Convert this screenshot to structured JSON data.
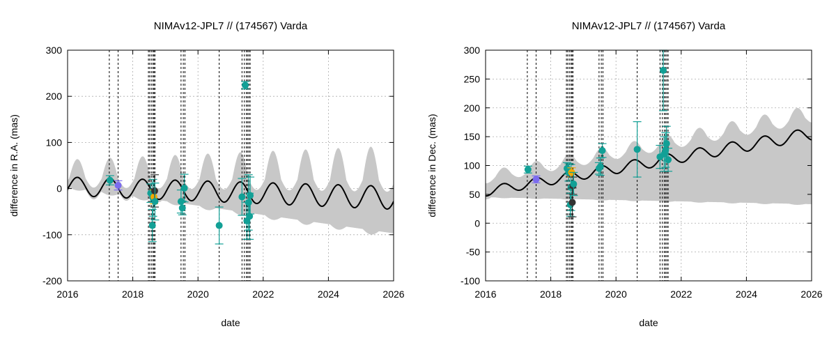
{
  "colors": {
    "band": "#c8c8c8",
    "model": "#000000",
    "teal": "#12a096",
    "purple": "#7b6bef",
    "orange": "#f2a900",
    "dark": "#333333",
    "vline": "#000000",
    "grid": "#aaaaaa"
  },
  "chart_data": [
    {
      "type": "scatter",
      "title": "NIMAv12-JPL7 // (174567) Varda",
      "xlabel": "date",
      "ylabel": "difference in R.A. (mas)",
      "xlim": [
        2016,
        2026
      ],
      "ylim": [
        -200,
        300
      ],
      "xticks": [
        2016,
        2018,
        2020,
        2022,
        2024,
        2026
      ],
      "yticks": [
        -200,
        -100,
        0,
        100,
        200,
        300
      ],
      "grid": true,
      "model": {
        "center": 5,
        "center_slope": -2.5,
        "amp": 20,
        "amp_slope": 0.5,
        "period": 1.0,
        "phase": 2016.05,
        "band_upper_base": 18,
        "band_upper_slope": 2,
        "band_lower_base": -2,
        "band_lower_slope": -10,
        "band_osc": 20,
        "band_osc_slope": 3
      },
      "vlines": [
        2017.28,
        2017.55,
        2018.48,
        2018.52,
        2018.57,
        2018.62,
        2018.65,
        2018.68,
        2019.48,
        2019.55,
        2019.6,
        2020.65,
        2021.35,
        2021.42,
        2021.48,
        2021.52,
        2021.56,
        2021.6
      ],
      "points": [
        {
          "x": 2017.3,
          "y": 18,
          "err": 10,
          "color": "teal"
        },
        {
          "x": 2017.55,
          "y": 7,
          "err": 10,
          "color": "purple"
        },
        {
          "x": 2018.55,
          "y": -10,
          "err": 20,
          "color": "teal"
        },
        {
          "x": 2018.6,
          "y": -80,
          "err": 35,
          "color": "teal"
        },
        {
          "x": 2018.62,
          "y": -20,
          "err": 40,
          "color": "teal"
        },
        {
          "x": 2018.65,
          "y": -18,
          "err": 15,
          "color": "orange"
        },
        {
          "x": 2018.67,
          "y": -5,
          "err": 35,
          "color": "dark"
        },
        {
          "x": 2018.68,
          "y": -28,
          "err": 40,
          "color": "teal"
        },
        {
          "x": 2019.48,
          "y": -28,
          "err": 25,
          "color": "teal"
        },
        {
          "x": 2019.52,
          "y": -42,
          "err": 15,
          "color": "teal"
        },
        {
          "x": 2019.58,
          "y": 1,
          "err": 30,
          "color": "teal"
        },
        {
          "x": 2020.65,
          "y": -80,
          "err": 40,
          "color": "teal"
        },
        {
          "x": 2021.35,
          "y": -18,
          "err": 40,
          "color": "teal"
        },
        {
          "x": 2021.45,
          "y": 224,
          "err": 8,
          "color": "teal"
        },
        {
          "x": 2021.5,
          "y": -70,
          "err": 40,
          "color": "teal"
        },
        {
          "x": 2021.55,
          "y": -30,
          "err": 60,
          "color": "teal"
        },
        {
          "x": 2021.58,
          "y": -60,
          "err": 50,
          "color": "teal"
        },
        {
          "x": 2021.6,
          "y": -15,
          "err": 40,
          "color": "teal"
        }
      ]
    },
    {
      "type": "scatter",
      "title": "NIMAv12-JPL7 // (174567) Varda",
      "xlabel": "date",
      "ylabel": "difference in Dec. (mas)",
      "xlim": [
        2016,
        2026
      ],
      "ylim": [
        -100,
        300
      ],
      "xticks": [
        2016,
        2018,
        2020,
        2022,
        2024,
        2026
      ],
      "yticks": [
        -100,
        -50,
        0,
        50,
        100,
        150,
        200,
        250,
        300
      ],
      "grid": true,
      "model": {
        "center": 55,
        "center_slope": 10,
        "amp": 8,
        "amp_slope": 0.3,
        "period": 1.0,
        "phase": 2016.3,
        "band_upper_base": 22,
        "band_upper_slope": 0.8,
        "band_lower_base": -10,
        "band_lower_slope": -1.2,
        "band_osc": 5,
        "band_osc_slope": 0.4
      },
      "vlines": [
        2017.28,
        2017.55,
        2018.48,
        2018.52,
        2018.57,
        2018.62,
        2018.65,
        2018.68,
        2019.48,
        2019.55,
        2019.6,
        2020.65,
        2021.35,
        2021.42,
        2021.48,
        2021.52,
        2021.56,
        2021.6
      ],
      "points": [
        {
          "x": 2017.3,
          "y": 93,
          "err": 6,
          "color": "teal"
        },
        {
          "x": 2017.55,
          "y": 76,
          "err": 6,
          "color": "purple"
        },
        {
          "x": 2018.5,
          "y": 95,
          "err": 10,
          "color": "teal"
        },
        {
          "x": 2018.55,
          "y": 88,
          "err": 15,
          "color": "teal"
        },
        {
          "x": 2018.6,
          "y": 32,
          "err": 20,
          "color": "teal"
        },
        {
          "x": 2018.62,
          "y": 62,
          "err": 40,
          "color": "teal"
        },
        {
          "x": 2018.64,
          "y": 88,
          "err": 8,
          "color": "orange"
        },
        {
          "x": 2018.66,
          "y": 36,
          "err": 25,
          "color": "dark"
        },
        {
          "x": 2018.68,
          "y": 65,
          "err": 15,
          "color": "dark"
        },
        {
          "x": 2018.7,
          "y": 68,
          "err": 20,
          "color": "teal"
        },
        {
          "x": 2019.48,
          "y": 95,
          "err": 10,
          "color": "teal"
        },
        {
          "x": 2019.52,
          "y": 98,
          "err": 15,
          "color": "teal"
        },
        {
          "x": 2019.58,
          "y": 126,
          "err": 12,
          "color": "teal"
        },
        {
          "x": 2020.65,
          "y": 128,
          "err": 48,
          "color": "teal"
        },
        {
          "x": 2021.35,
          "y": 115,
          "err": 20,
          "color": "teal"
        },
        {
          "x": 2021.45,
          "y": 265,
          "err": 70,
          "color": "teal"
        },
        {
          "x": 2021.48,
          "y": 120,
          "err": 30,
          "color": "teal"
        },
        {
          "x": 2021.52,
          "y": 127,
          "err": 30,
          "color": "teal"
        },
        {
          "x": 2021.55,
          "y": 138,
          "err": 30,
          "color": "teal"
        },
        {
          "x": 2021.6,
          "y": 110,
          "err": 20,
          "color": "teal"
        }
      ]
    }
  ]
}
